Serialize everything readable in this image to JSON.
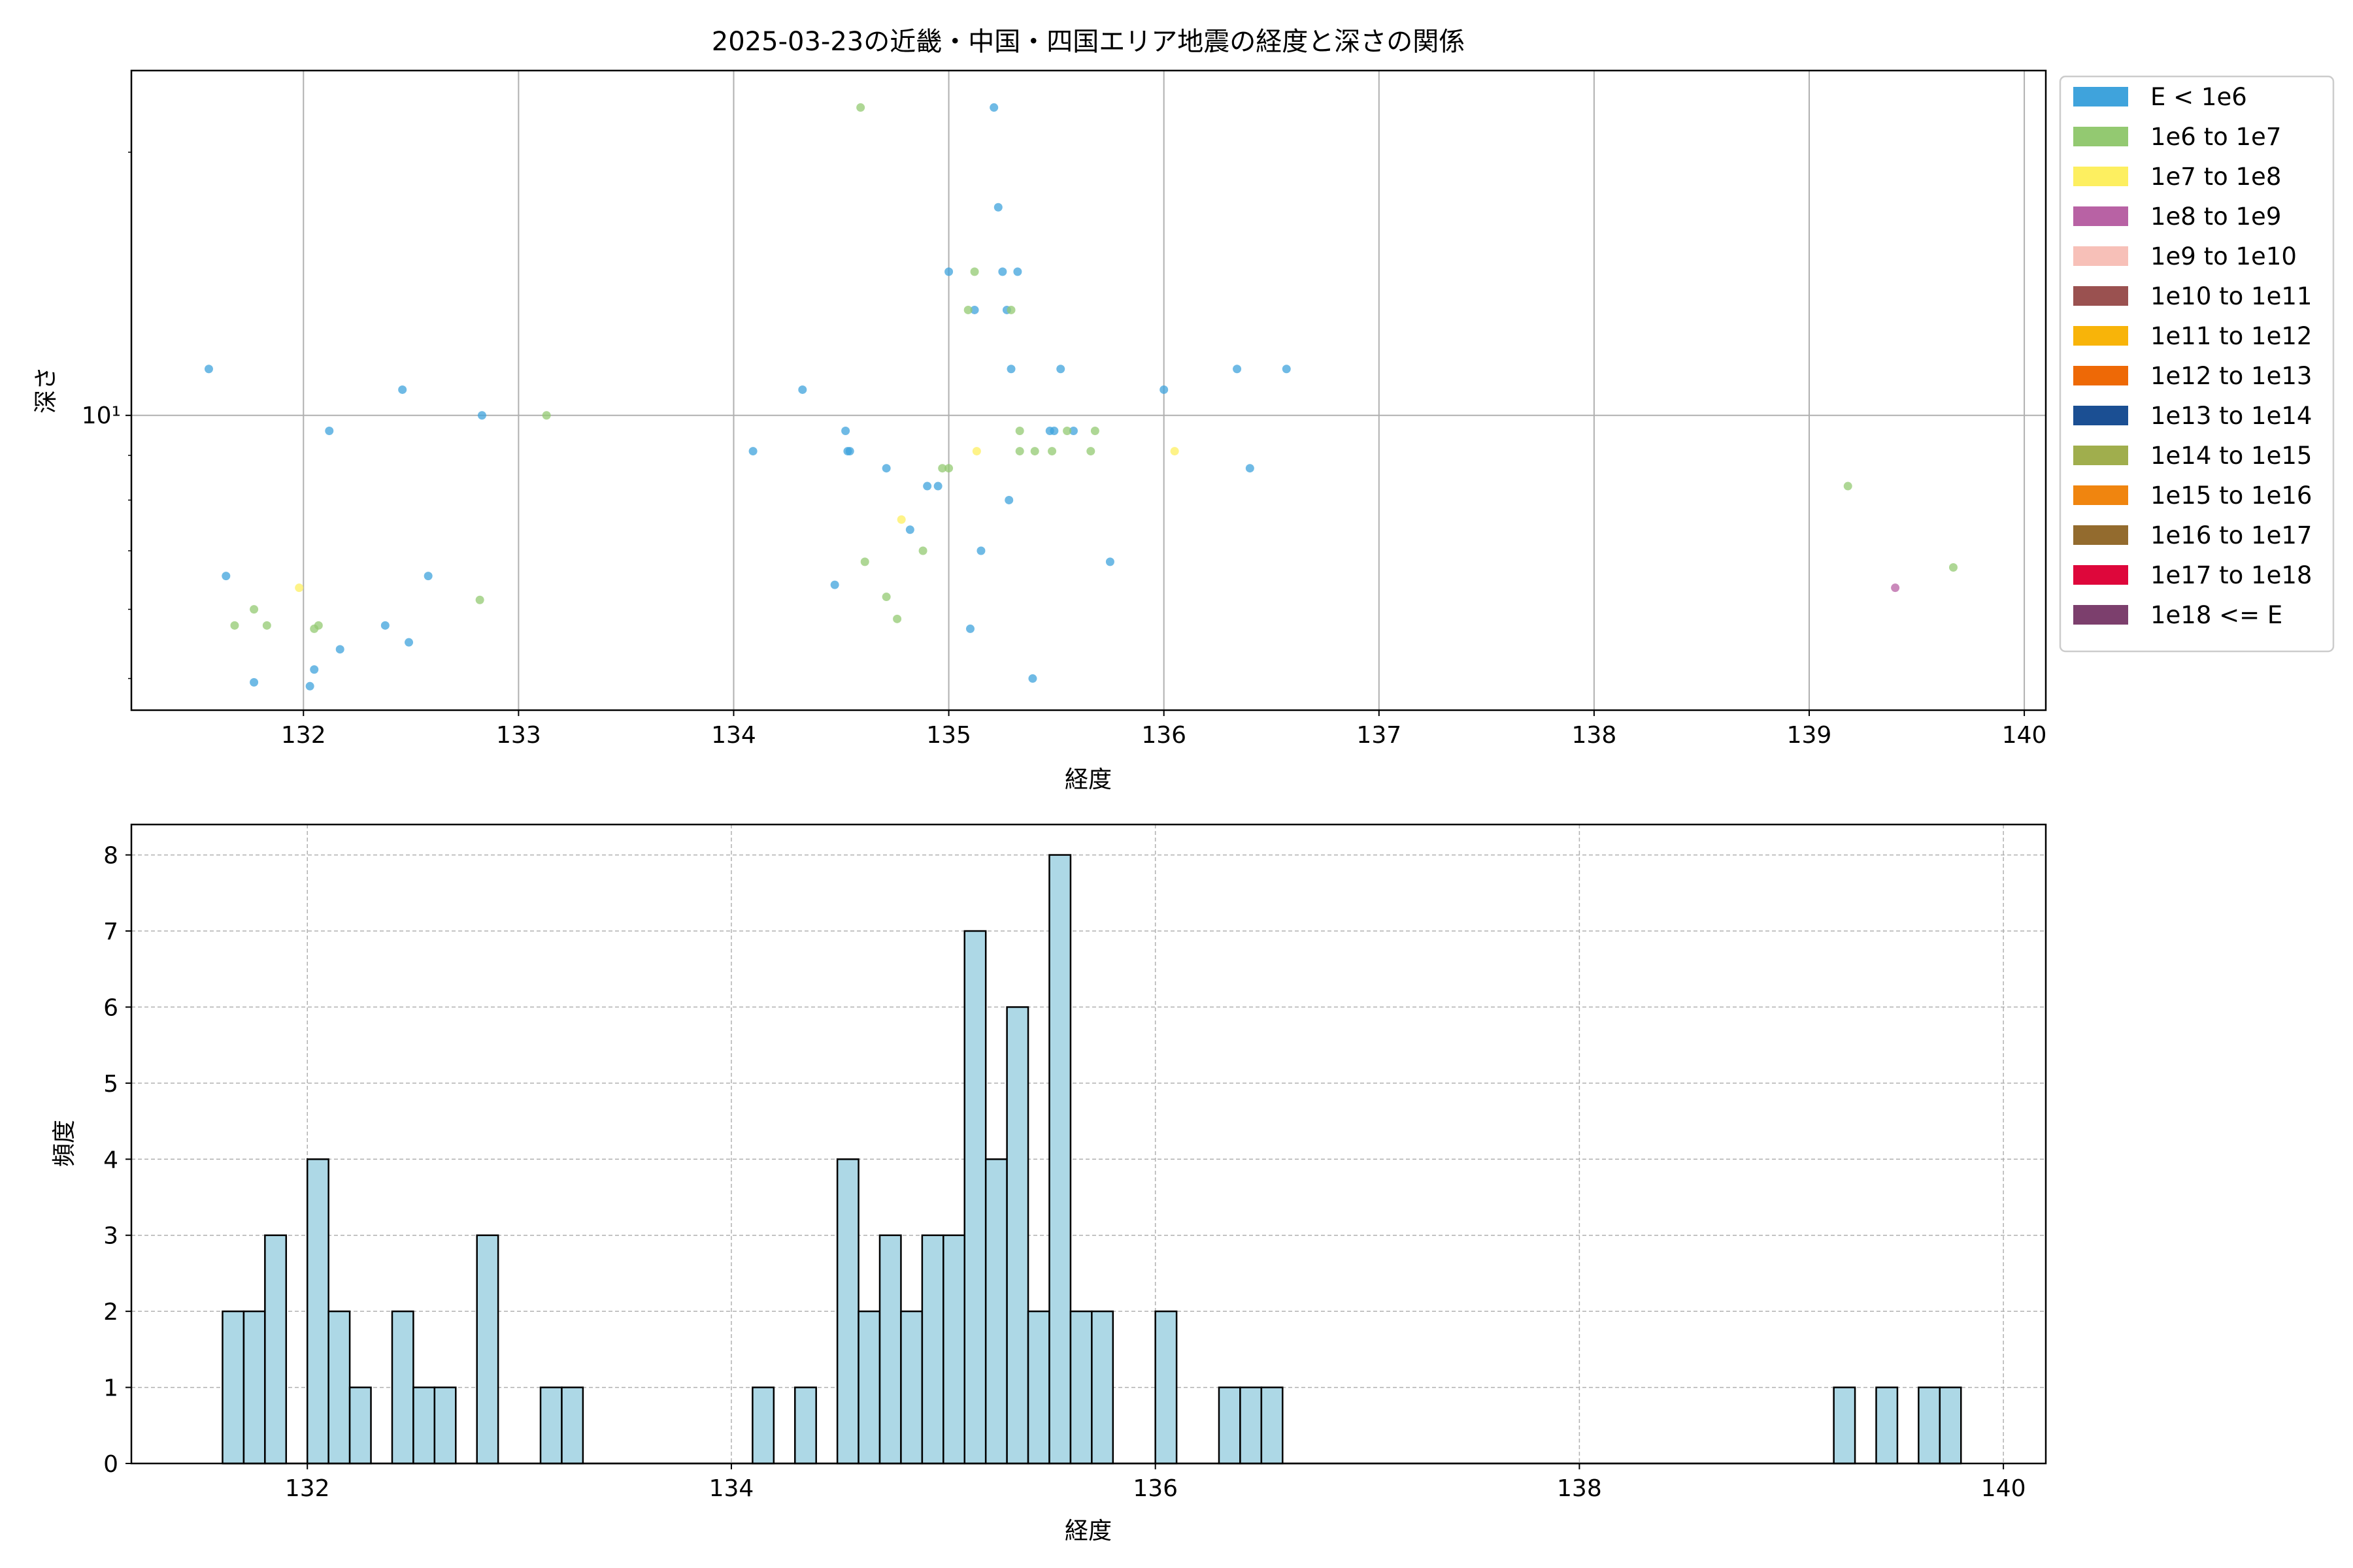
{
  "chart_data": [
    {
      "type": "scatter",
      "title": "2025-03-23の近畿・中国・四国エリア地震の経度と深さの関係",
      "xlabel": "経度",
      "ylabel": "深さ",
      "xlim": [
        131.2,
        140.1
      ],
      "ylim": [
        4.6,
        24.8
      ],
      "yscale": "log",
      "xticks": [
        "132",
        "133",
        "134",
        "135",
        "136",
        "137",
        "138",
        "139",
        "140"
      ],
      "yticks": [
        "10¹"
      ],
      "grid": true,
      "legend_position": "outside-right",
      "legend": [
        {
          "label": "E < 1e6",
          "color": "#3fa3dc"
        },
        {
          "label": "1e6 to 1e7",
          "color": "#93c971"
        },
        {
          "label": "1e7 to 1e8",
          "color": "#fdef60"
        },
        {
          "label": "1e8 to 1e9",
          "color": "#b862a4"
        },
        {
          "label": "1e9 to 1e10",
          "color": "#f7c0b8"
        },
        {
          "label": "1e10 to 1e11",
          "color": "#9a5150"
        },
        {
          "label": "1e11 to 1e12",
          "color": "#f8b409"
        },
        {
          "label": "1e12 to 1e13",
          "color": "#ee6906"
        },
        {
          "label": "1e13 to 1e14",
          "color": "#1b4f93"
        },
        {
          "label": "1e14 to 1e15",
          "color": "#a0ae4d"
        },
        {
          "label": "1e15 to 1e16",
          "color": "#f0850f"
        },
        {
          "label": "1e16 to 1e17",
          "color": "#936b2e"
        },
        {
          "label": "1e17 to 1e18",
          "color": "#de073b"
        },
        {
          "label": "1e18 <= E",
          "color": "#7c3f6d"
        }
      ],
      "series": [
        {
          "name": "E < 1e6",
          "color": "#3fa3dc",
          "points": [
            [
              131.56,
              11.3
            ],
            [
              131.64,
              6.55
            ],
            [
              131.77,
              4.95
            ],
            [
              132.03,
              4.9
            ],
            [
              132.05,
              5.12
            ],
            [
              132.12,
              9.6
            ],
            [
              132.17,
              5.4
            ],
            [
              132.38,
              5.75
            ],
            [
              132.46,
              10.7
            ],
            [
              132.49,
              5.5
            ],
            [
              132.58,
              6.55
            ],
            [
              132.83,
              10.0
            ],
            [
              134.09,
              9.1
            ],
            [
              134.32,
              10.7
            ],
            [
              134.47,
              6.4
            ],
            [
              134.52,
              9.6
            ],
            [
              134.53,
              9.1
            ],
            [
              134.54,
              9.1
            ],
            [
              134.71,
              8.7
            ],
            [
              134.82,
              7.4
            ],
            [
              134.9,
              8.3
            ],
            [
              134.95,
              8.3
            ],
            [
              135.0,
              14.6
            ],
            [
              135.1,
              5.7
            ],
            [
              135.12,
              13.2
            ],
            [
              135.15,
              7.0
            ],
            [
              135.21,
              22.5
            ],
            [
              135.23,
              17.3
            ],
            [
              135.25,
              14.6
            ],
            [
              135.27,
              13.2
            ],
            [
              135.28,
              8.0
            ],
            [
              135.29,
              11.3
            ],
            [
              135.32,
              14.6
            ],
            [
              135.39,
              5.0
            ],
            [
              135.47,
              9.6
            ],
            [
              135.49,
              9.6
            ],
            [
              135.52,
              11.3
            ],
            [
              135.58,
              9.6
            ],
            [
              135.75,
              6.8
            ],
            [
              136.0,
              10.7
            ],
            [
              136.34,
              11.3
            ],
            [
              136.4,
              8.7
            ],
            [
              136.57,
              11.3
            ]
          ]
        },
        {
          "name": "1e6 to 1e7",
          "color": "#93c971",
          "points": [
            [
              131.68,
              5.75
            ],
            [
              131.77,
              6.0
            ],
            [
              131.83,
              5.75
            ],
            [
              132.05,
              5.7
            ],
            [
              132.07,
              5.75
            ],
            [
              132.82,
              6.15
            ],
            [
              133.13,
              10.0
            ],
            [
              134.59,
              22.5
            ],
            [
              134.61,
              6.8
            ],
            [
              134.71,
              6.2
            ],
            [
              134.76,
              5.85
            ],
            [
              134.88,
              7.0
            ],
            [
              134.97,
              8.7
            ],
            [
              135.0,
              8.7
            ],
            [
              135.09,
              13.2
            ],
            [
              135.12,
              14.6
            ],
            [
              135.29,
              13.2
            ],
            [
              135.33,
              9.6
            ],
            [
              135.33,
              9.1
            ],
            [
              135.4,
              9.1
            ],
            [
              135.48,
              9.1
            ],
            [
              135.55,
              9.6
            ],
            [
              135.66,
              9.1
            ],
            [
              135.68,
              9.6
            ],
            [
              139.18,
              8.3
            ],
            [
              139.67,
              6.7
            ]
          ]
        },
        {
          "name": "1e7 to 1e8",
          "color": "#fdef60",
          "points": [
            [
              131.98,
              6.35
            ],
            [
              134.78,
              7.6
            ],
            [
              135.13,
              9.1
            ],
            [
              136.05,
              9.1
            ]
          ]
        },
        {
          "name": "1e8 to 1e9",
          "color": "#b862a4",
          "points": [
            [
              139.4,
              6.35
            ]
          ]
        }
      ]
    },
    {
      "type": "bar",
      "title": "",
      "xlabel": "経度",
      "ylabel": "頻度",
      "xlim": [
        131.17,
        140.2
      ],
      "ylim": [
        0,
        8.4
      ],
      "xticks": [
        "132",
        "134",
        "136",
        "138",
        "140"
      ],
      "yticks": [
        "0",
        "1",
        "2",
        "3",
        "4",
        "5",
        "6",
        "7",
        "8"
      ],
      "grid": true,
      "bar_color": "#add8e6",
      "bin_width": 0.1,
      "bins": [
        {
          "x": 131.6,
          "count": 2
        },
        {
          "x": 131.7,
          "count": 2
        },
        {
          "x": 131.8,
          "count": 3
        },
        {
          "x": 132.0,
          "count": 4
        },
        {
          "x": 132.1,
          "count": 2
        },
        {
          "x": 132.2,
          "count": 1
        },
        {
          "x": 132.4,
          "count": 2
        },
        {
          "x": 132.5,
          "count": 1
        },
        {
          "x": 132.6,
          "count": 1
        },
        {
          "x": 132.8,
          "count": 3
        },
        {
          "x": 133.1,
          "count": 1
        },
        {
          "x": 133.2,
          "count": 1
        },
        {
          "x": 134.1,
          "count": 1
        },
        {
          "x": 134.3,
          "count": 1
        },
        {
          "x": 134.5,
          "count": 4
        },
        {
          "x": 134.6,
          "count": 2
        },
        {
          "x": 134.7,
          "count": 3
        },
        {
          "x": 134.8,
          "count": 2
        },
        {
          "x": 134.9,
          "count": 3
        },
        {
          "x": 135.0,
          "count": 3
        },
        {
          "x": 135.1,
          "count": 7
        },
        {
          "x": 135.2,
          "count": 4
        },
        {
          "x": 135.3,
          "count": 6
        },
        {
          "x": 135.4,
          "count": 2
        },
        {
          "x": 135.5,
          "count": 8
        },
        {
          "x": 135.6,
          "count": 2
        },
        {
          "x": 135.7,
          "count": 2
        },
        {
          "x": 136.0,
          "count": 2
        },
        {
          "x": 136.3,
          "count": 1
        },
        {
          "x": 136.4,
          "count": 1
        },
        {
          "x": 136.5,
          "count": 1
        },
        {
          "x": 139.2,
          "count": 1
        },
        {
          "x": 139.4,
          "count": 1
        },
        {
          "x": 139.6,
          "count": 1
        },
        {
          "x": 139.7,
          "count": 1
        }
      ]
    }
  ]
}
